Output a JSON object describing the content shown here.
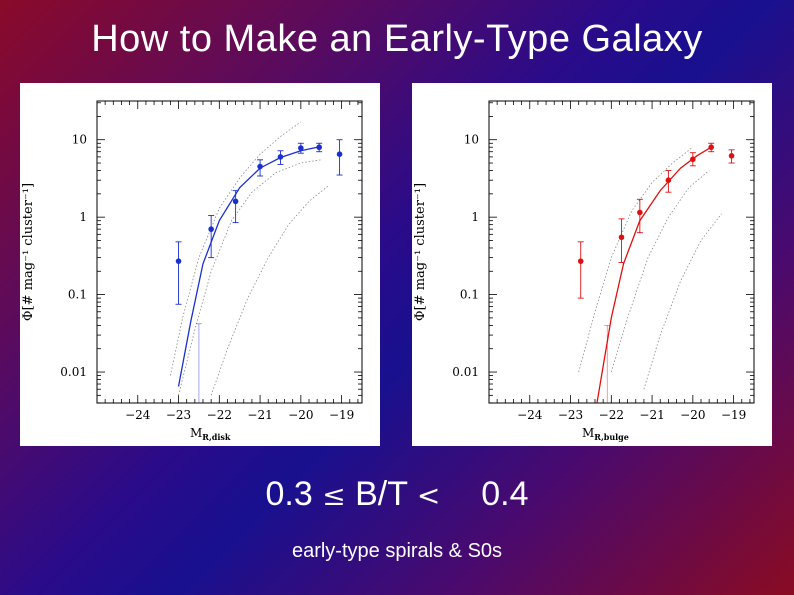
{
  "slide": {
    "title": "How to Make an Early-Type Galaxy",
    "formula": {
      "lower": "0.3",
      "le_symbol": "≤",
      "ratio": "B/T",
      "lt_symbol": "<",
      "upper": "0.4"
    },
    "subtitle": "early-type spirals & S0s"
  },
  "chart_data": [
    {
      "type": "scatter",
      "panel": "left",
      "ylabel": "Φ[# mag⁻¹ cluster⁻¹]",
      "xlabel_main": "M",
      "xlabel_sub": "R,disk",
      "xlim": [
        -25,
        -18.5
      ],
      "ylim_log10": [
        -2.4,
        1.5
      ],
      "y_scale": "log",
      "xticks": [
        -24,
        -23,
        -22,
        -21,
        -20,
        -19
      ],
      "xtick_labels": [
        "−24",
        "−23",
        "−22",
        "−21",
        "−20",
        "−19"
      ],
      "yticks": [
        0.01,
        0.1,
        1,
        10
      ],
      "ytick_labels": [
        "0.01",
        "0.1",
        "1",
        "10"
      ],
      "color": "#1a2fd0",
      "points": [
        {
          "x": -23.0,
          "y": 0.27,
          "ylo": 0.075,
          "yhi": 0.48
        },
        {
          "x": -22.2,
          "y": 0.7,
          "ylo": 0.3,
          "yhi": 1.05
        },
        {
          "x": -21.6,
          "y": 1.6,
          "ylo": 0.85,
          "yhi": 2.2
        },
        {
          "x": -21.0,
          "y": 4.5,
          "ylo": 3.4,
          "yhi": 5.5
        },
        {
          "x": -20.5,
          "y": 6.0,
          "ylo": 4.8,
          "yhi": 7.2
        },
        {
          "x": -20.0,
          "y": 7.8,
          "ylo": 6.7,
          "yhi": 9.0
        },
        {
          "x": -19.55,
          "y": 8.0,
          "ylo": 7.0,
          "yhi": 9.0
        },
        {
          "x": -19.05,
          "y": 6.5,
          "ylo": 3.5,
          "yhi": 10.0
        }
      ],
      "fit_points": [
        {
          "x": -23.0,
          "y": 0.0065
        },
        {
          "x": -22.7,
          "y": 0.045
        },
        {
          "x": -22.4,
          "y": 0.25
        },
        {
          "x": -22.0,
          "y": 0.9
        },
        {
          "x": -21.5,
          "y": 2.4
        },
        {
          "x": -21.0,
          "y": 4.3
        },
        {
          "x": -20.5,
          "y": 5.9
        },
        {
          "x": -20.0,
          "y": 7.2
        },
        {
          "x": -19.6,
          "y": 8.0
        }
      ],
      "bounding_curves": [
        [
          {
            "x": -23.2,
            "y": 0.009
          },
          {
            "x": -22.9,
            "y": 0.05
          },
          {
            "x": -22.5,
            "y": 0.3
          },
          {
            "x": -22.0,
            "y": 1.3
          },
          {
            "x": -21.5,
            "y": 3.2
          },
          {
            "x": -21.0,
            "y": 6.5
          },
          {
            "x": -20.5,
            "y": 11
          },
          {
            "x": -20.0,
            "y": 17
          }
        ],
        [
          {
            "x": -23.0,
            "y": 0.005
          },
          {
            "x": -22.6,
            "y": 0.035
          },
          {
            "x": -22.2,
            "y": 0.2
          },
          {
            "x": -21.7,
            "y": 0.9
          },
          {
            "x": -21.2,
            "y": 2.1
          },
          {
            "x": -20.6,
            "y": 3.8
          },
          {
            "x": -20.0,
            "y": 5.0
          },
          {
            "x": -19.5,
            "y": 5.5
          }
        ],
        [
          {
            "x": -22.2,
            "y": 0.005
          },
          {
            "x": -21.8,
            "y": 0.02
          },
          {
            "x": -21.3,
            "y": 0.09
          },
          {
            "x": -20.8,
            "y": 0.3
          },
          {
            "x": -20.3,
            "y": 0.8
          },
          {
            "x": -19.8,
            "y": 1.6
          },
          {
            "x": -19.3,
            "y": 2.6
          }
        ]
      ],
      "upper_limit_bar": {
        "x": -22.5,
        "ylo": 0.004,
        "yhi": 0.042
      }
    },
    {
      "type": "scatter",
      "panel": "right",
      "ylabel": "Φ[# mag⁻¹ cluster⁻¹]",
      "xlabel_main": "M",
      "xlabel_sub": "R,bulge",
      "xlim": [
        -25,
        -18.5
      ],
      "ylim_log10": [
        -2.4,
        1.5
      ],
      "y_scale": "log",
      "xticks": [
        -24,
        -23,
        -22,
        -21,
        -20,
        -19
      ],
      "xtick_labels": [
        "−24",
        "−23",
        "−22",
        "−21",
        "−20",
        "−19"
      ],
      "yticks": [
        0.01,
        0.1,
        1,
        10
      ],
      "ytick_labels": [
        "0.01",
        "0.1",
        "1",
        "10"
      ],
      "color": "#e01010",
      "points": [
        {
          "x": -22.75,
          "y": 0.27,
          "ylo": 0.09,
          "yhi": 0.48
        },
        {
          "x": -21.75,
          "y": 0.55,
          "ylo": 0.26,
          "yhi": 0.95
        },
        {
          "x": -21.3,
          "y": 1.15,
          "ylo": 0.63,
          "yhi": 1.7
        },
        {
          "x": -20.6,
          "y": 3.0,
          "ylo": 2.1,
          "yhi": 4.0
        },
        {
          "x": -20.0,
          "y": 5.6,
          "ylo": 4.6,
          "yhi": 6.8
        },
        {
          "x": -19.55,
          "y": 8.0,
          "ylo": 7.0,
          "yhi": 9.0
        },
        {
          "x": -19.05,
          "y": 6.2,
          "ylo": 5.0,
          "yhi": 7.4
        }
      ],
      "fit_points": [
        {
          "x": -22.35,
          "y": 0.004
        },
        {
          "x": -22.0,
          "y": 0.05
        },
        {
          "x": -21.7,
          "y": 0.25
        },
        {
          "x": -21.3,
          "y": 0.9
        },
        {
          "x": -20.8,
          "y": 2.2
        },
        {
          "x": -20.3,
          "y": 4.3
        },
        {
          "x": -19.9,
          "y": 6.2
        },
        {
          "x": -19.55,
          "y": 8.0
        }
      ],
      "bounding_curves": [
        [
          {
            "x": -22.8,
            "y": 0.01
          },
          {
            "x": -22.4,
            "y": 0.06
          },
          {
            "x": -22.0,
            "y": 0.3
          },
          {
            "x": -21.5,
            "y": 1.2
          },
          {
            "x": -21.0,
            "y": 2.8
          },
          {
            "x": -20.5,
            "y": 5.0
          },
          {
            "x": -20.0,
            "y": 8.0
          }
        ],
        [
          {
            "x": -22.0,
            "y": 0.01
          },
          {
            "x": -21.6,
            "y": 0.05
          },
          {
            "x": -21.1,
            "y": 0.3
          },
          {
            "x": -20.6,
            "y": 1.0
          },
          {
            "x": -20.1,
            "y": 2.4
          },
          {
            "x": -19.6,
            "y": 4.0
          }
        ],
        [
          {
            "x": -21.2,
            "y": 0.006
          },
          {
            "x": -20.8,
            "y": 0.03
          },
          {
            "x": -20.3,
            "y": 0.15
          },
          {
            "x": -19.8,
            "y": 0.5
          },
          {
            "x": -19.3,
            "y": 1.1
          }
        ]
      ],
      "upper_limit_bar": {
        "x": -22.1,
        "ylo": 0.004,
        "yhi": 0.04
      }
    }
  ]
}
